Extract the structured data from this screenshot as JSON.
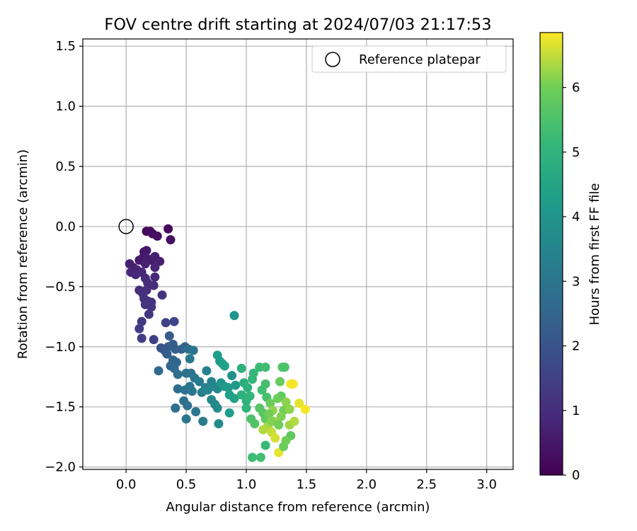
{
  "chart_data": {
    "type": "scatter",
    "title": "FOV centre drift starting at 2024/07/03 21:17:53",
    "xlabel": "Angular distance from reference (arcmin)",
    "ylabel": "Rotation from reference (arcmin)",
    "xlim": [
      -0.36,
      3.22
    ],
    "ylim": [
      -2.02,
      1.56
    ],
    "xticks": [
      0.0,
      0.5,
      1.0,
      1.5,
      2.0,
      2.5,
      3.0
    ],
    "xtick_labels": [
      "0.0",
      "0.5",
      "1.0",
      "1.5",
      "2.0",
      "2.5",
      "3.0"
    ],
    "yticks": [
      -2.0,
      -1.5,
      -1.0,
      -0.5,
      0.0,
      0.5,
      1.0,
      1.5
    ],
    "ytick_labels": [
      "−2.0",
      "−1.5",
      "−1.0",
      "−0.5",
      "0.0",
      "0.5",
      "1.0",
      "1.5"
    ],
    "grid": true,
    "legend": {
      "position": "top-right",
      "entries": [
        "Reference platepar"
      ]
    },
    "reference_point": {
      "x": 0.0,
      "y": 0.0
    },
    "colorbar": {
      "label": "Hours from first FF file",
      "min": 0,
      "max": 6.85,
      "ticks": [
        0,
        1,
        2,
        3,
        4,
        5,
        6
      ],
      "tick_labels": [
        "0",
        "1",
        "2",
        "3",
        "4",
        "5",
        "6"
      ],
      "colormap": "viridis"
    },
    "points": [
      [
        0.17,
        -0.04,
        0.15
      ],
      [
        0.2,
        -0.04,
        0.2
      ],
      [
        0.22,
        -0.06,
        0.25
      ],
      [
        0.26,
        -0.08,
        0.3
      ],
      [
        0.35,
        -0.02,
        0.2
      ],
      [
        0.37,
        -0.11,
        0.3
      ],
      [
        0.15,
        -0.21,
        0.45
      ],
      [
        0.17,
        -0.2,
        0.5
      ],
      [
        0.14,
        -0.26,
        0.55
      ],
      [
        0.18,
        -0.27,
        0.6
      ],
      [
        0.11,
        -0.28,
        0.55
      ],
      [
        0.21,
        -0.28,
        0.6
      ],
      [
        0.24,
        -0.25,
        0.65
      ],
      [
        0.28,
        -0.29,
        0.7
      ],
      [
        0.03,
        -0.31,
        0.65
      ],
      [
        0.06,
        -0.34,
        0.7
      ],
      [
        0.16,
        -0.31,
        0.75
      ],
      [
        0.09,
        -0.36,
        0.75
      ],
      [
        0.24,
        -0.34,
        0.8
      ],
      [
        0.04,
        -0.38,
        0.8
      ],
      [
        0.08,
        -0.4,
        0.85
      ],
      [
        0.13,
        -0.38,
        0.85
      ],
      [
        0.16,
        -0.43,
        0.9
      ],
      [
        0.24,
        -0.42,
        0.9
      ],
      [
        0.18,
        -0.47,
        0.95
      ],
      [
        0.23,
        -0.49,
        1.0
      ],
      [
        0.11,
        -0.53,
        1.0
      ],
      [
        0.14,
        -0.56,
        1.05
      ],
      [
        0.17,
        -0.53,
        1.05
      ],
      [
        0.3,
        -0.57,
        1.15
      ],
      [
        0.15,
        -0.6,
        1.1
      ],
      [
        0.18,
        -0.62,
        1.1
      ],
      [
        0.21,
        -0.63,
        1.15
      ],
      [
        0.16,
        -0.65,
        1.2
      ],
      [
        0.21,
        -0.67,
        1.2
      ],
      [
        0.19,
        -0.73,
        1.25
      ],
      [
        0.13,
        -0.79,
        1.3
      ],
      [
        0.11,
        -0.85,
        1.35
      ],
      [
        0.13,
        -0.93,
        1.4
      ],
      [
        0.23,
        -0.94,
        1.45
      ],
      [
        0.33,
        -0.8,
        1.5
      ],
      [
        0.4,
        -0.79,
        1.6
      ],
      [
        0.36,
        -0.91,
        2.2
      ],
      [
        0.29,
        -1.01,
        2.0
      ],
      [
        0.32,
        -1.03,
        2.1
      ],
      [
        0.35,
        -1.0,
        2.15
      ],
      [
        0.39,
        -0.98,
        2.2
      ],
      [
        0.34,
        -1.06,
        2.3
      ],
      [
        0.41,
        -1.02,
        2.35
      ],
      [
        0.46,
        -1.02,
        2.4
      ],
      [
        0.49,
        -1.0,
        2.45
      ],
      [
        0.39,
        -1.11,
        2.5
      ],
      [
        0.42,
        -1.13,
        2.55
      ],
      [
        0.37,
        -1.16,
        2.5
      ],
      [
        0.27,
        -1.2,
        2.6
      ],
      [
        0.4,
        -1.18,
        2.65
      ],
      [
        0.43,
        -1.23,
        2.75
      ],
      [
        0.52,
        -1.02,
        2.8
      ],
      [
        0.56,
        -1.03,
        3.0
      ],
      [
        0.53,
        -1.1,
        3.1
      ],
      [
        0.43,
        -1.35,
        2.7
      ],
      [
        0.5,
        -1.22,
        2.8
      ],
      [
        0.54,
        -1.22,
        2.9
      ],
      [
        0.57,
        -1.26,
        3.0
      ],
      [
        0.49,
        -1.36,
        2.9
      ],
      [
        0.53,
        -1.33,
        3.0
      ],
      [
        0.55,
        -1.37,
        3.1
      ],
      [
        0.48,
        -1.45,
        2.8
      ],
      [
        0.51,
        -1.49,
        2.9
      ],
      [
        0.41,
        -1.51,
        2.75
      ],
      [
        0.58,
        -1.54,
        3.1
      ],
      [
        0.5,
        -1.6,
        3.0
      ],
      [
        0.64,
        -1.62,
        3.15
      ],
      [
        0.61,
        -1.29,
        3.2
      ],
      [
        0.63,
        -1.38,
        3.3
      ],
      [
        0.66,
        -1.34,
        3.35
      ],
      [
        0.67,
        -1.2,
        3.4
      ],
      [
        0.71,
        -1.29,
        3.45
      ],
      [
        0.68,
        -1.36,
        3.5
      ],
      [
        0.73,
        -1.33,
        3.55
      ],
      [
        0.76,
        -1.35,
        3.6
      ],
      [
        0.71,
        -1.44,
        3.6
      ],
      [
        0.74,
        -1.48,
        3.65
      ],
      [
        0.76,
        -1.51,
        3.7
      ],
      [
        0.77,
        -1.64,
        3.7
      ],
      [
        0.76,
        -1.07,
        4.3
      ],
      [
        0.78,
        -1.12,
        4.2
      ],
      [
        0.8,
        -1.14,
        4.35
      ],
      [
        0.82,
        -1.16,
        4.4
      ],
      [
        0.79,
        -1.3,
        4.0
      ],
      [
        0.82,
        -1.33,
        4.1
      ],
      [
        0.85,
        -1.34,
        4.2
      ],
      [
        0.88,
        -1.24,
        3.9
      ],
      [
        0.91,
        -1.32,
        4.15
      ],
      [
        0.86,
        -1.4,
        4.3
      ],
      [
        0.9,
        -1.43,
        4.4
      ],
      [
        0.86,
        -1.55,
        4.3
      ],
      [
        0.9,
        -0.74,
        4.0
      ],
      [
        0.96,
        -1.18,
        4.9
      ],
      [
        0.98,
        -1.3,
        4.8
      ],
      [
        1.01,
        -1.34,
        4.85
      ],
      [
        0.96,
        -1.4,
        4.9
      ],
      [
        1.0,
        -1.45,
        4.95
      ],
      [
        1.0,
        -1.51,
        5.0
      ],
      [
        1.03,
        -1.41,
        5.05
      ],
      [
        1.05,
        -1.27,
        5.1
      ],
      [
        1.06,
        -1.22,
        5.15
      ],
      [
        1.11,
        -1.17,
        5.25
      ],
      [
        1.16,
        -1.17,
        5.3
      ],
      [
        1.13,
        -1.36,
        5.35
      ],
      [
        1.16,
        -1.31,
        5.4
      ],
      [
        1.17,
        -1.42,
        5.45
      ],
      [
        1.05,
        -1.92,
        5.3
      ],
      [
        1.12,
        -1.92,
        5.35
      ],
      [
        1.04,
        -1.6,
        5.5
      ],
      [
        1.07,
        -1.64,
        5.6
      ],
      [
        1.14,
        -1.55,
        5.7
      ],
      [
        1.11,
        -1.51,
        5.65
      ],
      [
        1.16,
        -1.6,
        5.8
      ],
      [
        1.2,
        -1.47,
        5.9
      ],
      [
        1.22,
        -1.53,
        6.2
      ],
      [
        1.19,
        -1.56,
        6.0
      ],
      [
        1.23,
        -1.62,
        6.3
      ],
      [
        1.18,
        -1.66,
        6.35
      ],
      [
        1.14,
        -1.69,
        6.4
      ],
      [
        1.21,
        -1.71,
        6.5
      ],
      [
        1.24,
        -1.76,
        6.6
      ],
      [
        1.27,
        -1.88,
        6.7
      ],
      [
        1.16,
        -1.82,
        5.2
      ],
      [
        1.28,
        -1.29,
        5.9
      ],
      [
        1.3,
        -1.17,
        5.6
      ],
      [
        1.32,
        -1.17,
        5.5
      ],
      [
        1.29,
        -1.41,
        5.8
      ],
      [
        1.26,
        -1.43,
        5.95
      ],
      [
        1.31,
        -1.53,
        6.0
      ],
      [
        1.29,
        -1.58,
        6.1
      ],
      [
        1.33,
        -1.46,
        6.15
      ],
      [
        1.37,
        -1.31,
        6.8
      ],
      [
        1.39,
        -1.31,
        6.8
      ],
      [
        1.36,
        -1.52,
        6.2
      ],
      [
        1.36,
        -1.65,
        6.3
      ],
      [
        1.4,
        -1.62,
        6.4
      ],
      [
        1.44,
        -1.47,
        6.7
      ],
      [
        1.49,
        -1.52,
        6.8
      ],
      [
        1.37,
        -1.74,
        5.8
      ],
      [
        1.31,
        -1.83,
        5.9
      ],
      [
        1.33,
        -1.78,
        6.0
      ],
      [
        1.21,
        -1.62,
        6.1
      ],
      [
        1.27,
        -1.65,
        6.0
      ]
    ]
  }
}
